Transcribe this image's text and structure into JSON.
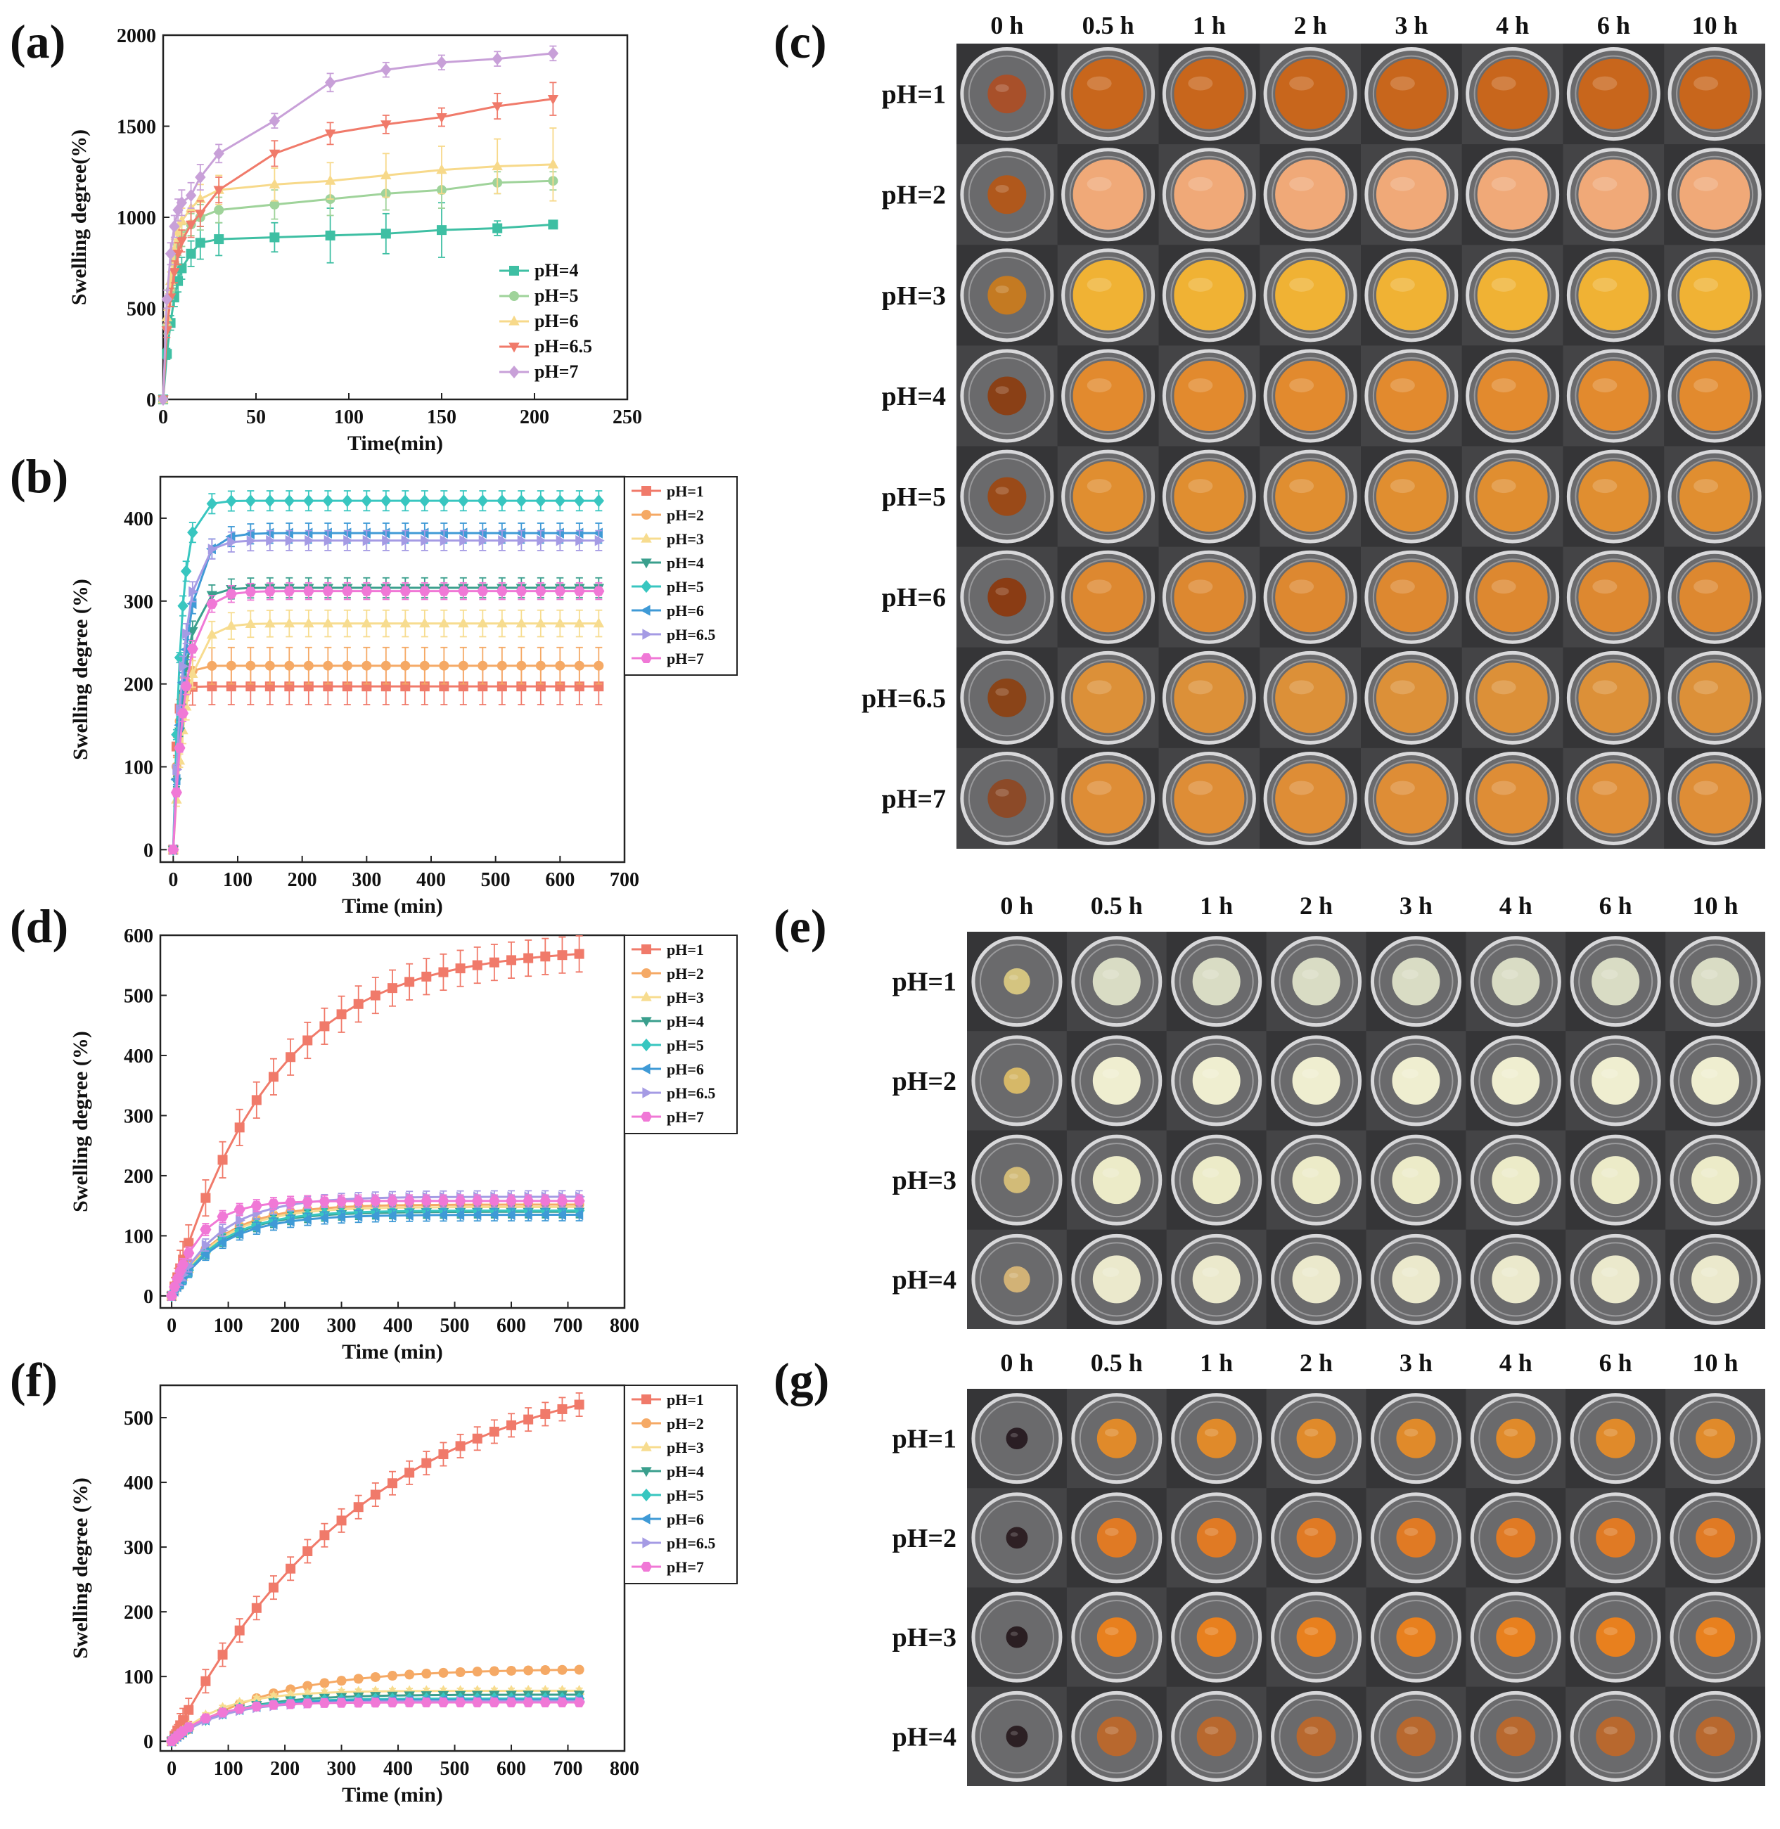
{
  "panels": {
    "a": "(a)",
    "b": "(b)",
    "c": "(c)",
    "d": "(d)",
    "e": "(e)",
    "f": "(f)",
    "g": "(g)"
  },
  "chart_data": [
    {
      "panel": "a",
      "type": "line",
      "xlabel": "Time(min)",
      "ylabel": "Swelling degree(%)",
      "xlim": [
        0,
        250
      ],
      "ylim": [
        0,
        2000
      ],
      "xticks": [
        0,
        50,
        100,
        150,
        200,
        250
      ],
      "yticks": [
        0,
        500,
        1000,
        1500,
        2000
      ],
      "legend_position": "bottom-right",
      "series": [
        {
          "name": "pH=4",
          "color": "#3ebfa3",
          "marker": "square",
          "x": [
            0,
            2,
            4,
            6,
            8,
            10,
            15,
            20,
            30,
            60,
            90,
            120,
            150,
            180,
            210
          ],
          "y": [
            0,
            250,
            420,
            560,
            650,
            720,
            800,
            860,
            880,
            890,
            900,
            910,
            930,
            940,
            960
          ],
          "err": [
            0,
            30,
            40,
            50,
            60,
            60,
            70,
            90,
            90,
            80,
            150,
            110,
            150,
            40,
            20
          ]
        },
        {
          "name": "pH=5",
          "color": "#9fd39a",
          "marker": "circle",
          "x": [
            0,
            2,
            4,
            6,
            8,
            10,
            15,
            20,
            30,
            60,
            90,
            120,
            150,
            180,
            210
          ],
          "y": [
            0,
            400,
            600,
            750,
            850,
            900,
            960,
            1000,
            1040,
            1070,
            1100,
            1130,
            1150,
            1190,
            1200
          ],
          "err": [
            0,
            40,
            50,
            60,
            60,
            60,
            60,
            70,
            70,
            80,
            90,
            90,
            100,
            60,
            50
          ]
        },
        {
          "name": "pH=6",
          "color": "#f7d98a",
          "marker": "triangle-up",
          "x": [
            0,
            2,
            4,
            6,
            8,
            10,
            15,
            20,
            30,
            60,
            90,
            120,
            150,
            180,
            210
          ],
          "y": [
            0,
            450,
            650,
            820,
            920,
            980,
            1050,
            1100,
            1150,
            1180,
            1200,
            1230,
            1260,
            1280,
            1290
          ],
          "err": [
            0,
            40,
            50,
            60,
            60,
            70,
            70,
            80,
            80,
            90,
            100,
            120,
            130,
            150,
            200
          ]
        },
        {
          "name": "pH=6.5",
          "color": "#f07a6a",
          "marker": "triangle-down",
          "x": [
            0,
            2,
            4,
            6,
            8,
            10,
            15,
            20,
            30,
            60,
            90,
            120,
            150,
            180,
            210
          ],
          "y": [
            0,
            380,
            560,
            700,
            800,
            870,
            960,
            1020,
            1150,
            1350,
            1460,
            1510,
            1550,
            1610,
            1650
          ],
          "err": [
            0,
            40,
            50,
            60,
            60,
            60,
            70,
            70,
            70,
            70,
            60,
            50,
            50,
            70,
            90
          ]
        },
        {
          "name": "pH=7",
          "color": "#c8a0d8",
          "marker": "diamond",
          "x": [
            0,
            2,
            4,
            6,
            8,
            10,
            15,
            20,
            30,
            60,
            90,
            120,
            150,
            180,
            210
          ],
          "y": [
            0,
            550,
            800,
            950,
            1040,
            1080,
            1120,
            1220,
            1350,
            1530,
            1740,
            1810,
            1850,
            1870,
            1900
          ],
          "err": [
            0,
            50,
            60,
            60,
            60,
            70,
            70,
            70,
            50,
            40,
            50,
            40,
            40,
            40,
            40
          ]
        }
      ]
    },
    {
      "panel": "b",
      "type": "line",
      "xlabel": "Time (min)",
      "ylabel": "Swelling degree (%)",
      "xlim": [
        -20,
        700
      ],
      "ylim": [
        -15,
        450
      ],
      "xticks": [
        0,
        100,
        200,
        300,
        400,
        500,
        600,
        700
      ],
      "yticks": [
        0,
        100,
        200,
        300,
        400
      ],
      "legend_position": "right",
      "x": [
        0,
        5,
        10,
        15,
        20,
        30,
        60,
        90,
        120,
        150,
        180,
        210,
        240,
        270,
        300,
        330,
        360,
        390,
        420,
        450,
        480,
        510,
        540,
        570,
        600,
        630,
        660
      ],
      "series": [
        {
          "name": "pH=1",
          "color": "#f07a6a",
          "marker": "square",
          "plateau": 197,
          "k": 0.2,
          "err": 22
        },
        {
          "name": "pH=2",
          "color": "#f5a965",
          "marker": "circle",
          "plateau": 222,
          "k": 0.12,
          "err": 22
        },
        {
          "name": "pH=3",
          "color": "#f7dc8f",
          "marker": "triangle-up",
          "plateau": 273,
          "k": 0.05,
          "err": 16
        },
        {
          "name": "pH=4",
          "color": "#3a9f8d",
          "marker": "triangle-down",
          "plateau": 316,
          "k": 0.06,
          "err": 12
        },
        {
          "name": "pH=5",
          "color": "#38c6c0",
          "marker": "diamond",
          "plateau": 421,
          "k": 0.08,
          "err": 12
        },
        {
          "name": "pH=6",
          "color": "#3f9ad6",
          "marker": "triangle-left",
          "plateau": 382,
          "k": 0.05,
          "err": 12
        },
        {
          "name": "pH=6.5",
          "color": "#a59be4",
          "marker": "triangle-right",
          "plateau": 373,
          "k": 0.06,
          "err": 12
        },
        {
          "name": "pH=7",
          "color": "#f078d6",
          "marker": "hexagon",
          "plateau": 312,
          "k": 0.05,
          "err": 10
        }
      ]
    },
    {
      "panel": "d",
      "type": "line",
      "xlabel": "Time (min)",
      "ylabel": "Swelling degree (%)",
      "xlim": [
        -20,
        800
      ],
      "ylim": [
        -20,
        600
      ],
      "xticks": [
        0,
        100,
        200,
        300,
        400,
        500,
        600,
        700,
        800
      ],
      "yticks": [
        0,
        100,
        200,
        300,
        400,
        500,
        600
      ],
      "legend_position": "top-right",
      "x": [
        0,
        5,
        10,
        15,
        20,
        30,
        60,
        90,
        120,
        150,
        180,
        210,
        240,
        270,
        300,
        330,
        360,
        390,
        420,
        450,
        480,
        510,
        540,
        570,
        600,
        630,
        660,
        690,
        720
      ],
      "series": [
        {
          "name": "pH=1",
          "color": "#f07a6a",
          "marker": "square",
          "plateau": 580,
          "k": 0.0055,
          "err": 30
        },
        {
          "name": "pH=2",
          "color": "#f5a965",
          "marker": "circle",
          "plateau": 152,
          "k": 0.012,
          "err": 10
        },
        {
          "name": "pH=3",
          "color": "#f7dc8f",
          "marker": "triangle-up",
          "plateau": 148,
          "k": 0.012,
          "err": 10
        },
        {
          "name": "pH=4",
          "color": "#3a9f8d",
          "marker": "triangle-down",
          "plateau": 140,
          "k": 0.012,
          "err": 10
        },
        {
          "name": "pH=5",
          "color": "#38c6c0",
          "marker": "diamond",
          "plateau": 142,
          "k": 0.012,
          "err": 10
        },
        {
          "name": "pH=6",
          "color": "#3f9ad6",
          "marker": "triangle-left",
          "plateau": 135,
          "k": 0.012,
          "err": 10
        },
        {
          "name": "pH=6.5",
          "color": "#a59be4",
          "marker": "triangle-right",
          "plateau": 165,
          "k": 0.012,
          "err": 10
        },
        {
          "name": "pH=7",
          "color": "#f078d6",
          "marker": "hexagon",
          "plateau": 158,
          "k": 0.02,
          "err": 10
        }
      ]
    },
    {
      "panel": "f",
      "type": "line",
      "xlabel": "Time (min)",
      "ylabel": "Swelling degree (%)",
      "xlim": [
        -20,
        800
      ],
      "ylim": [
        -15,
        550
      ],
      "xticks": [
        0,
        100,
        200,
        300,
        400,
        500,
        600,
        700,
        800
      ],
      "yticks": [
        0,
        100,
        200,
        300,
        400,
        500
      ],
      "legend_position": "top-right",
      "x": [
        0,
        5,
        10,
        15,
        20,
        30,
        60,
        90,
        120,
        150,
        180,
        210,
        240,
        270,
        300,
        330,
        360,
        390,
        420,
        450,
        480,
        510,
        540,
        570,
        600,
        630,
        660,
        690,
        720
      ],
      "series": [
        {
          "name": "pH=1",
          "color": "#f07a6a",
          "marker": "square",
          "plateau": 600,
          "k": 0.0028,
          "err": 18
        },
        {
          "name": "pH=2",
          "color": "#f5a965",
          "marker": "circle",
          "plateau": 112,
          "k": 0.006,
          "err": 5
        },
        {
          "name": "pH=3",
          "color": "#f7dc8f",
          "marker": "triangle-up",
          "plateau": 78,
          "k": 0.012,
          "err": 4
        },
        {
          "name": "pH=4",
          "color": "#3a9f8d",
          "marker": "triangle-down",
          "plateau": 72,
          "k": 0.01,
          "err": 4
        },
        {
          "name": "pH=5",
          "color": "#38c6c0",
          "marker": "diamond",
          "plateau": 66,
          "k": 0.012,
          "err": 4
        },
        {
          "name": "pH=6",
          "color": "#3f9ad6",
          "marker": "triangle-left",
          "plateau": 64,
          "k": 0.012,
          "err": 4
        },
        {
          "name": "pH=6.5",
          "color": "#a59be4",
          "marker": "triangle-right",
          "plateau": 62,
          "k": 0.012,
          "err": 4
        },
        {
          "name": "pH=7",
          "color": "#f078d6",
          "marker": "hexagon",
          "plateau": 60,
          "k": 0.015,
          "err": 4
        }
      ]
    }
  ],
  "photo_grids": [
    {
      "panel": "c",
      "columns": [
        "0 h",
        "0.5 h",
        "1 h",
        "2 h",
        "3 h",
        "4 h",
        "6 h",
        "10 h"
      ],
      "rows": [
        "pH=1",
        "pH=2",
        "pH=3",
        "pH=4",
        "pH=5",
        "pH=6",
        "pH=6.5",
        "pH=7"
      ],
      "row_colors": [
        "#c8661c",
        "#f0a978",
        "#f0b234",
        "#e28a2e",
        "#e08e30",
        "#dd8830",
        "#dc9038",
        "#de8d36"
      ],
      "first_col_colors": [
        "#a8502a",
        "#b0581c",
        "#c47a22",
        "#8a4016",
        "#9a4a18",
        "#8a3c14",
        "#8a4418",
        "#8c4a28"
      ]
    },
    {
      "panel": "e",
      "columns": [
        "0 h",
        "0.5 h",
        "1 h",
        "2 h",
        "3 h",
        "4 h",
        "6 h",
        "10 h"
      ],
      "rows": [
        "pH=1",
        "pH=2",
        "pH=3",
        "pH=4"
      ],
      "row_colors": [
        "#d9dcc4",
        "#efeed0",
        "#ecebc8",
        "#ebe9cc"
      ],
      "first_col_colors": [
        "#d4c480",
        "#d6b868",
        "#d2bb78",
        "#d2b276"
      ]
    },
    {
      "panel": "g",
      "columns": [
        "0 h",
        "0.5 h",
        "1 h",
        "2 h",
        "3 h",
        "4 h",
        "6 h",
        "10 h"
      ],
      "rows": [
        "pH=1",
        "pH=2",
        "pH=3",
        "pH=4"
      ],
      "row_colors": [
        "#e08a2a",
        "#e07a24",
        "#e8801e",
        "#b8682e"
      ],
      "first_col_colors": [
        "#2a1e24",
        "#2e2024",
        "#2a1e22",
        "#2c2024"
      ]
    }
  ]
}
